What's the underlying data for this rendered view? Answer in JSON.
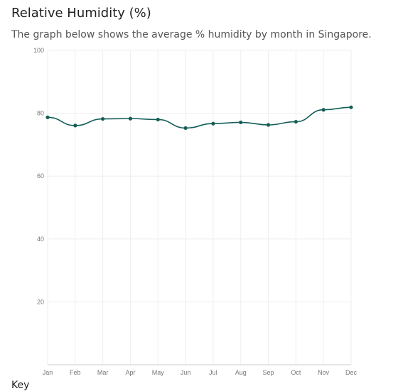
{
  "header": {
    "title": "Relative Humidity (%)",
    "subtitle": "The graph below shows the average % humidity by month in Singapore."
  },
  "legend": {
    "heading": "Key"
  },
  "colors": {
    "series": "#155e57",
    "grid": "#eeeeee",
    "axis": "#cccccc"
  },
  "chart_data": {
    "type": "line",
    "title": "Relative Humidity (%)",
    "xlabel": "",
    "ylabel": "",
    "categories": [
      "Jan",
      "Feb",
      "Mar",
      "Apr",
      "May",
      "Jun",
      "Jul",
      "Aug",
      "Sep",
      "Oct",
      "Nov",
      "Dec"
    ],
    "series": [
      {
        "values": [
          78.7,
          76.1,
          78.2,
          78.3,
          78.0,
          75.3,
          76.7,
          77.1,
          76.3,
          77.3,
          81.1,
          81.9
        ]
      }
    ],
    "ylim": [
      0,
      100
    ],
    "yticks": [
      20,
      40,
      60,
      80,
      100
    ],
    "grid": true,
    "smooth": true
  }
}
